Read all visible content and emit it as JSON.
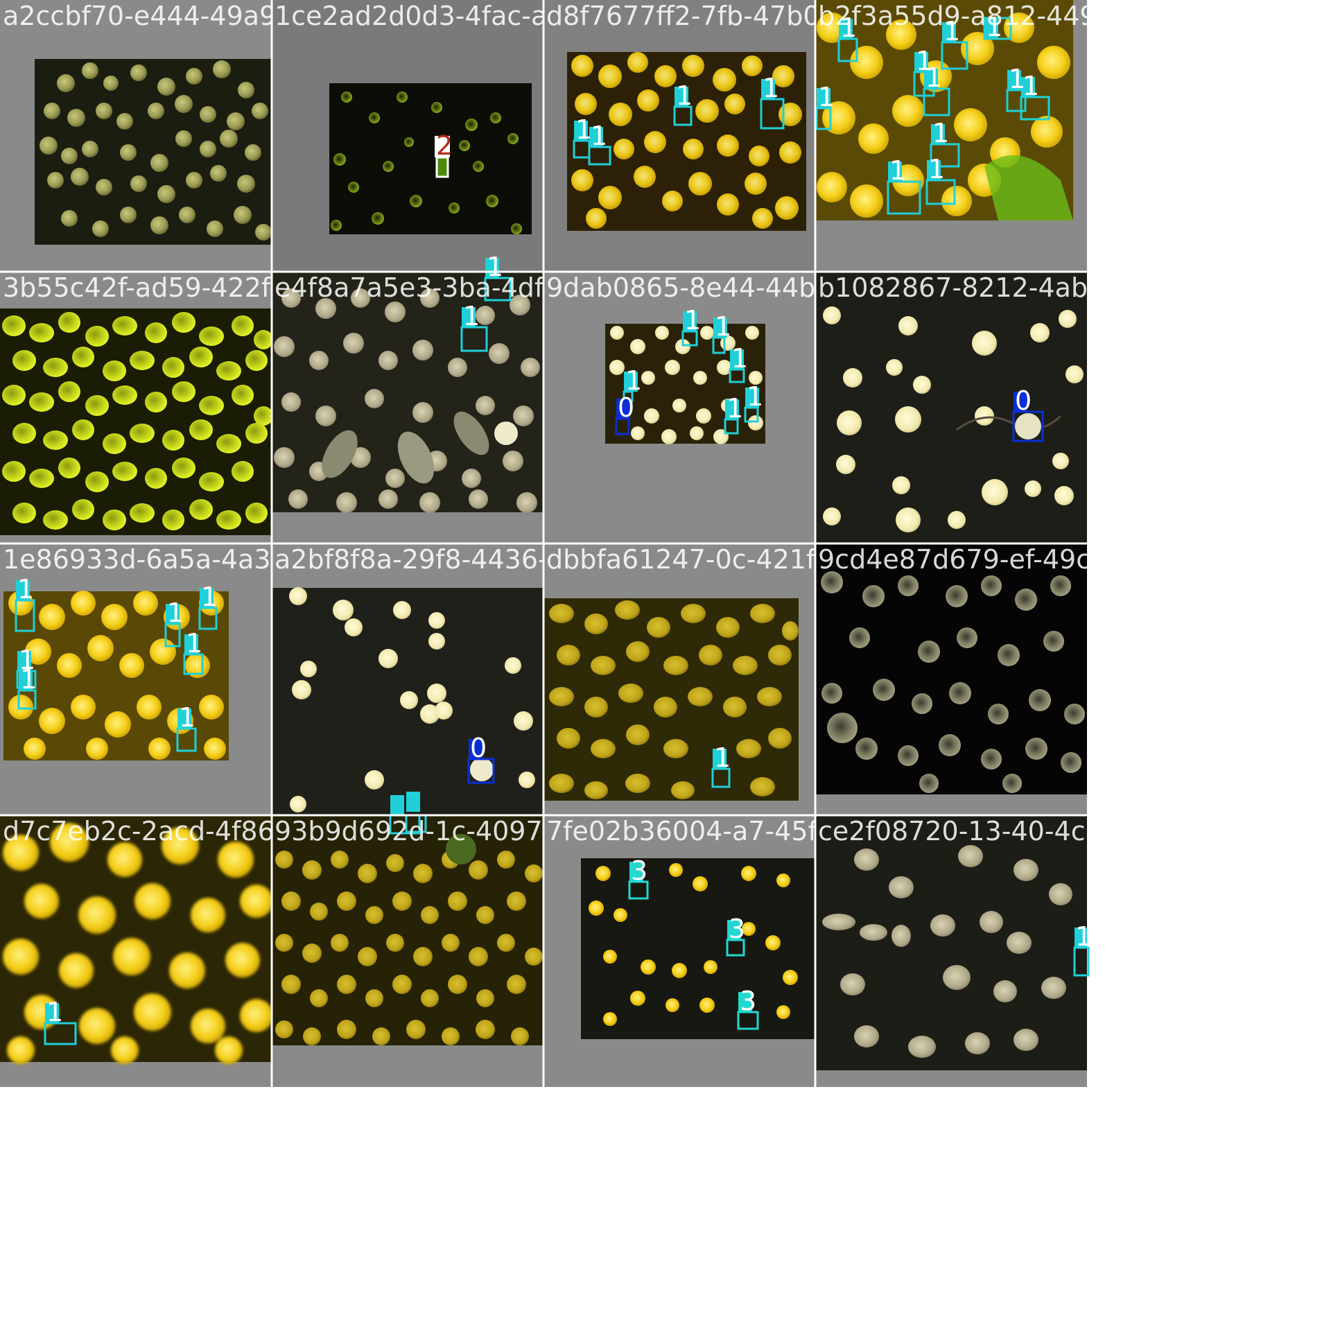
{
  "label_colors": {
    "0": "#0a2fd6",
    "1": "#1fd0d8",
    "2": "#ffffff",
    "3": "#22d8d0"
  },
  "label_text_colors": {
    "0": "#ffffff",
    "1": "#ffffff",
    "2": "#b12a1a",
    "3": "#ffffff"
  },
  "tiles": [
    {
      "filename": "a2ccbf70-e444-49a9-8b7e-9797f2457278.png",
      "style": "green-disc",
      "box_labels": []
    },
    {
      "filename": "1ce2ad2d0d3-4fac-ac6e-1d87f6a72c7ab.png",
      "style": "dark-sparse",
      "box_labels": [
        "2"
      ]
    },
    {
      "filename": "d8f7677ff2-7fb-47b0-bbe7-ab7292057.png",
      "style": "bright",
      "box_labels": [
        "1",
        "1",
        "1",
        "1"
      ]
    },
    {
      "filename": "b2f3a55d9-a812-4496-b2dd-7.png",
      "style": "bright-green",
      "box_labels": [
        "1",
        "1",
        "1",
        "1",
        "1",
        "1",
        "1",
        "1",
        "1",
        "1",
        "1"
      ]
    },
    {
      "filename": "3b55c42f-ad59-422f-ba99-4f44827c8523.png",
      "style": "lime-dense",
      "box_labels": []
    },
    {
      "filename": "e4f8a7a5e3-3ba-4df1-8912-95d5b7065584.png",
      "style": "grey-crenated",
      "box_labels": [
        "1",
        "1"
      ]
    },
    {
      "filename": "9dab0865-8e44-44b8-aa43-6608288917.png",
      "style": "bright-small",
      "box_labels": [
        "1",
        "1",
        "1",
        "1",
        "1",
        "1",
        "0"
      ]
    },
    {
      "filename": "b1082867-8212-4ab1-843e-6.png",
      "style": "dark-white",
      "box_labels": [
        "0"
      ]
    },
    {
      "filename": "1e86933d-6a5a-4a3c-a0f2-ca226876872.png",
      "style": "bright-yellow",
      "box_labels": [
        "1",
        "1",
        "1",
        "1",
        "1",
        "1",
        "1"
      ]
    },
    {
      "filename": "a2bf8f8a-29f8-4436-b1ef-9dbbfa61247.png",
      "style": "dark-white",
      "box_labels": [
        "0",
        "1",
        "1"
      ]
    },
    {
      "filename": "dbbfa61247-0c-421f-a1c7-f69249fb67.png",
      "style": "olive-dense",
      "box_labels": [
        "1"
      ]
    },
    {
      "filename": "9cd4e87d679-ef-49c2-a52b-9.png",
      "style": "dark-grey",
      "box_labels": []
    },
    {
      "filename": "d7c7eb2c-2acd-4f86-8a5a-093b9d692d.png",
      "style": "bright-blur",
      "box_labels": [
        "1"
      ]
    },
    {
      "filename": "93b9d692d-1c-4097-a98b-7fe02b36004.png",
      "style": "olive-crenated",
      "box_labels": []
    },
    {
      "filename": "7fe02b36004-a7-45fb-bb40-3ce2f08720.png",
      "style": "yellow-dark",
      "box_labels": [
        "3",
        "3",
        "3"
      ]
    },
    {
      "filename": "ce2f08720-13-40-4c5f-9667-c.png",
      "style": "grey-large",
      "box_labels": [
        "1"
      ]
    }
  ]
}
